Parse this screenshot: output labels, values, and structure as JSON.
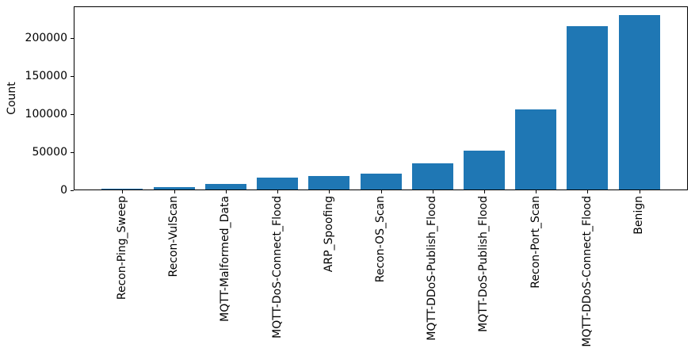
{
  "figure": {
    "background": "#ffffff"
  },
  "chart_data": {
    "type": "bar",
    "title": "",
    "xlabel": "",
    "ylabel": "Count",
    "bar_color": "#1f77b4",
    "axis_color": "#000000",
    "text_color": "#000000",
    "grid": false,
    "legend": null,
    "categories": [
      "Recon-Ping_Sweep",
      "Recon-VulScan",
      "MQTT-Malformed_Data",
      "MQTT-DoS-Connect_Flood",
      "ARP_Spoofing",
      "Recon-OS_Scan",
      "MQTT-DDoS-Publish_Flood",
      "MQTT-DoS-Publish_Flood",
      "Recon-Port_Scan",
      "MQTT-DDoS-Connect_Flood",
      "Benign"
    ],
    "values": [
      2000,
      4000,
      8500,
      16500,
      18500,
      21500,
      35000,
      52000,
      106000,
      215000,
      230000
    ],
    "yticks": [
      {
        "value": 0,
        "label": "0"
      },
      {
        "value": 50000,
        "label": "50000"
      },
      {
        "value": 100000,
        "label": "100000"
      },
      {
        "value": 150000,
        "label": "150000"
      },
      {
        "value": 200000,
        "label": "200000"
      }
    ],
    "ylim": [
      0,
      241500
    ]
  }
}
